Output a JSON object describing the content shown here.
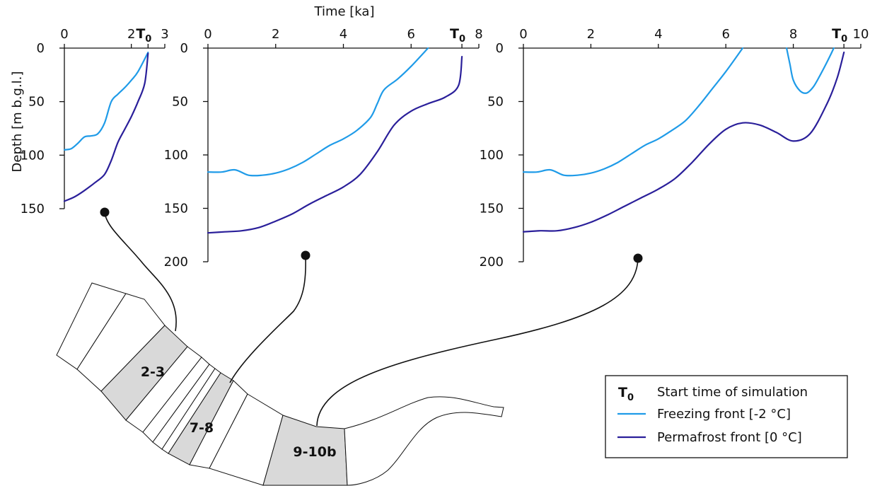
{
  "figure": {
    "time_axis_label": "Time [ka]",
    "depth_axis_label": "Depth [m b.g.l.]",
    "t0_marker": "T",
    "t0_sub": "0"
  },
  "legend": {
    "t0_text": "Start time of simulation",
    "freezing_label": "Freezing front [-2 °C]",
    "permafrost_label": "Permafrost front [0 °C]"
  },
  "map": {
    "segment_labels": [
      "2-3",
      "7-8",
      "9-10b"
    ]
  },
  "colors": {
    "freezing": "#1f9be8",
    "permafrost": "#2a1f9a",
    "highlight": "#d9d9d9"
  },
  "chart_data": [
    {
      "type": "line",
      "segment": "2-3",
      "xlabel": "",
      "ylabel": "Depth [m b.g.l.]",
      "xlim": [
        0,
        3
      ],
      "ylim": [
        150,
        0
      ],
      "x_ticks": [
        0,
        2,
        3
      ],
      "y_ticks": [
        0,
        50,
        100,
        150
      ],
      "t0": 2.5,
      "series": [
        {
          "name": "Freezing front [-2 °C]",
          "x": [
            0,
            0.2,
            0.4,
            0.6,
            0.8,
            1.0,
            1.2,
            1.4,
            1.6,
            1.8,
            2.0,
            2.2,
            2.5
          ],
          "y": [
            95,
            94,
            89,
            83,
            82,
            80,
            70,
            50,
            43,
            37,
            30,
            22,
            4
          ]
        },
        {
          "name": "Permafrost front [0 °C]",
          "x": [
            0,
            0.3,
            0.6,
            0.9,
            1.2,
            1.4,
            1.6,
            1.8,
            2.0,
            2.2,
            2.4,
            2.5
          ],
          "y": [
            143,
            139,
            133,
            126,
            118,
            105,
            88,
            76,
            64,
            50,
            33,
            5
          ]
        }
      ]
    },
    {
      "type": "line",
      "segment": "7-8",
      "xlabel": "Time [ka]",
      "ylabel": "",
      "xlim": [
        0,
        8
      ],
      "ylim": [
        200,
        0
      ],
      "x_ticks": [
        0,
        2,
        4,
        6,
        8
      ],
      "y_ticks": [
        0,
        50,
        100,
        150,
        200
      ],
      "t0": 7.5,
      "series": [
        {
          "name": "Freezing front [-2 °C]",
          "x": [
            0,
            0.4,
            0.8,
            1.2,
            1.6,
            2.0,
            2.4,
            2.8,
            3.2,
            3.6,
            4.0,
            4.4,
            4.8,
            5.0,
            5.2,
            5.6,
            6.0,
            6.5
          ],
          "y": [
            116,
            116,
            114,
            119,
            119,
            117,
            113,
            107,
            99,
            91,
            85,
            77,
            65,
            52,
            39,
            29,
            17,
            0
          ]
        },
        {
          "name": "Permafrost front [0 °C]",
          "x": [
            0,
            0.5,
            1.0,
            1.5,
            2.0,
            2.5,
            3.0,
            3.5,
            4.0,
            4.5,
            5.0,
            5.5,
            6.0,
            6.5,
            7.0,
            7.4,
            7.5
          ],
          "y": [
            173,
            172,
            171,
            168,
            162,
            155,
            146,
            138,
            130,
            118,
            97,
            72,
            59,
            52,
            46,
            35,
            8
          ]
        }
      ]
    },
    {
      "type": "line",
      "segment": "9-10b",
      "xlabel": "",
      "ylabel": "",
      "xlim": [
        0,
        10
      ],
      "ylim": [
        200,
        0
      ],
      "x_ticks": [
        0,
        2,
        4,
        6,
        8,
        10
      ],
      "y_ticks": [
        0,
        50,
        100,
        150,
        200
      ],
      "t0": 9.5,
      "series": [
        {
          "name": "Freezing front [-2 °C]",
          "x": [
            0,
            0.4,
            0.8,
            1.2,
            1.6,
            2.0,
            2.4,
            2.8,
            3.2,
            3.6,
            4.0,
            4.4,
            4.8,
            5.2,
            5.6,
            6.0,
            6.5
          ],
          "y": [
            116,
            116,
            114,
            119,
            119,
            117,
            113,
            107,
            99,
            91,
            85,
            77,
            68,
            54,
            38,
            22,
            0
          ]
        },
        {
          "name": "Freezing front [-2 °C]",
          "x": [
            7.8,
            7.9,
            8.0,
            8.2,
            8.4,
            8.6,
            8.8,
            9.0,
            9.2
          ],
          "y": [
            0,
            15,
            30,
            40,
            42,
            36,
            25,
            13,
            0
          ]
        },
        {
          "name": "Permafrost front [0 °C]",
          "x": [
            0,
            0.5,
            1.0,
            1.5,
            2.0,
            2.5,
            3.0,
            3.5,
            4.0,
            4.5,
            5.0,
            5.5,
            6.0,
            6.5,
            7.0,
            7.5,
            8.0,
            8.5,
            9.0,
            9.3,
            9.5
          ],
          "y": [
            172,
            171,
            171,
            168,
            163,
            156,
            148,
            140,
            132,
            122,
            107,
            90,
            76,
            70,
            72,
            79,
            87,
            80,
            52,
            28,
            4
          ]
        }
      ]
    }
  ]
}
